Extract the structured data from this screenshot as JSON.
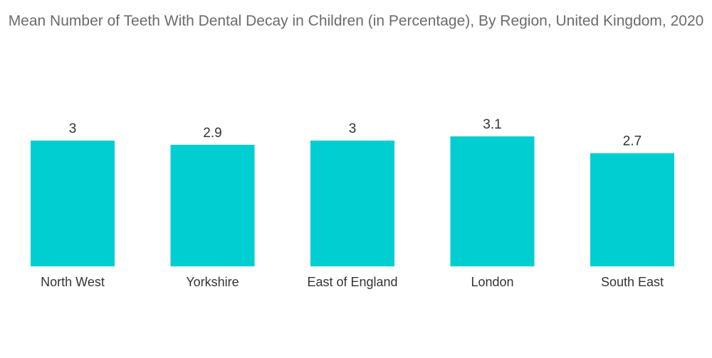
{
  "chart_data": {
    "type": "bar",
    "title": "Mean Number of Teeth With Dental Decay in Children (in Percentage), By Region, United Kingdom, 2020",
    "categories": [
      "North West",
      "Yorkshire",
      "East of England",
      "London",
      "South East"
    ],
    "values": [
      3,
      2.9,
      3,
      3.1,
      2.7
    ],
    "data_labels": [
      "3",
      "2.9",
      "3",
      "3.1",
      "2.7"
    ],
    "bar_color": "#00CED1",
    "xlabel": "",
    "ylabel": "",
    "ylim": [
      0,
      3.1
    ],
    "grid": false,
    "legend": "none"
  }
}
